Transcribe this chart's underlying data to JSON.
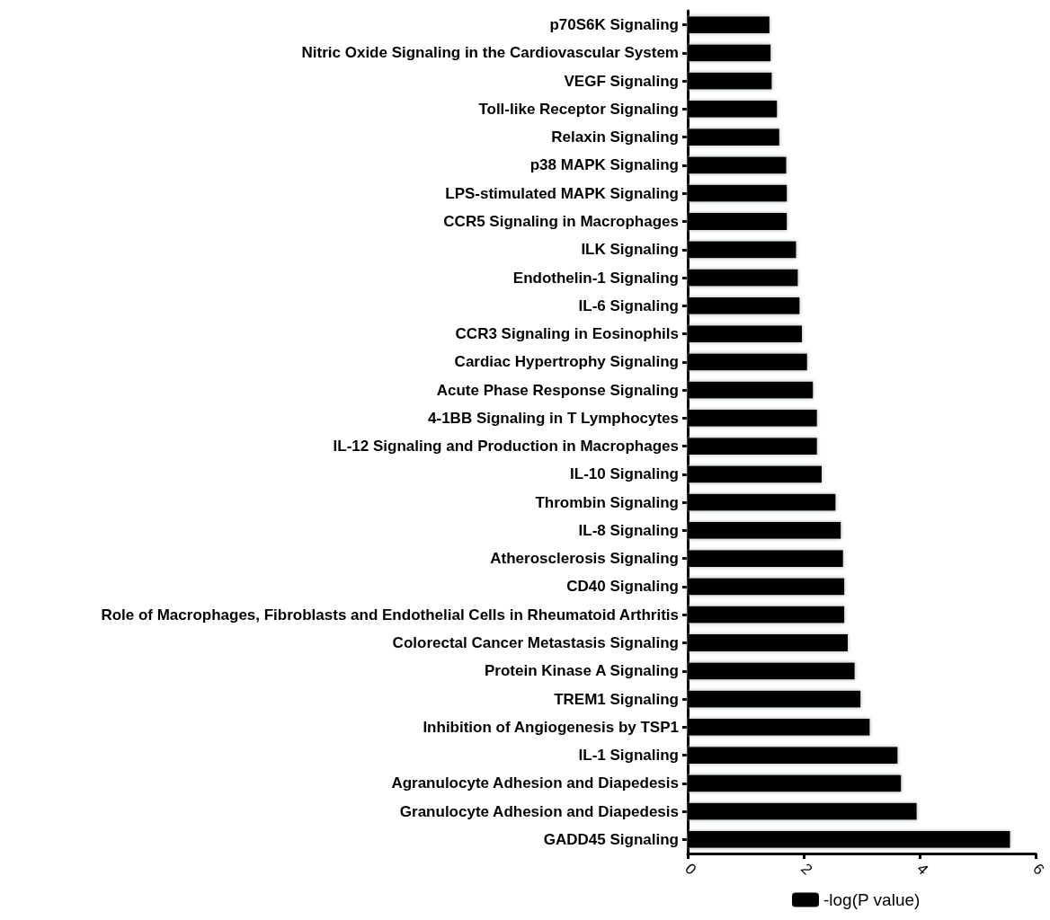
{
  "chart_data": {
    "type": "bar",
    "orientation": "horizontal",
    "categories": [
      "p70S6K Signaling",
      "Nitric Oxide Signaling in the Cardiovascular System",
      "VEGF Signaling",
      "Toll-like Receptor Signaling",
      "Relaxin Signaling",
      "p38 MAPK Signaling",
      "LPS-stimulated MAPK Signaling",
      "CCR5 Signaling in Macrophages",
      "ILK Signaling",
      "Endothelin-1 Signaling",
      "IL-6 Signaling",
      "CCR3 Signaling in Eosinophils",
      "Cardiac Hypertrophy Signaling",
      "Acute Phase Response Signaling",
      "4-1BB Signaling in T Lymphocytes",
      "IL-12 Signaling and Production in Macrophages",
      "IL-10 Signaling",
      "Thrombin Signaling",
      "IL-8 Signaling",
      "Atherosclerosis Signaling",
      "CD40 Signaling",
      "Role of Macrophages, Fibroblasts and Endothelial Cells in Rheumatoid Arthritis",
      "Colorectal Cancer Metastasis Signaling",
      "Protein Kinase A Signaling",
      "TREM1 Signaling",
      "Inhibition of Angiogenesis by TSP1",
      "IL-1 Signaling",
      "Agranulocyte Adhesion and Diapedesis",
      "Granulocyte Adhesion and Diapedesis",
      "GADD45 Signaling"
    ],
    "series": [
      {
        "name": "-log(P value)",
        "color": "#000000",
        "values": [
          1.41,
          1.43,
          1.45,
          1.54,
          1.58,
          1.7,
          1.71,
          1.71,
          1.87,
          1.9,
          1.93,
          1.97,
          2.06,
          2.16,
          2.23,
          2.23,
          2.31,
          2.55,
          2.64,
          2.68,
          2.7,
          2.7,
          2.76,
          2.88,
          2.98,
          3.14,
          3.62,
          3.68,
          3.95,
          5.56
        ]
      }
    ],
    "xlim": [
      0,
      6
    ],
    "xticks": [
      0,
      2,
      4,
      6
    ],
    "grid": false,
    "legend": "bottom"
  }
}
